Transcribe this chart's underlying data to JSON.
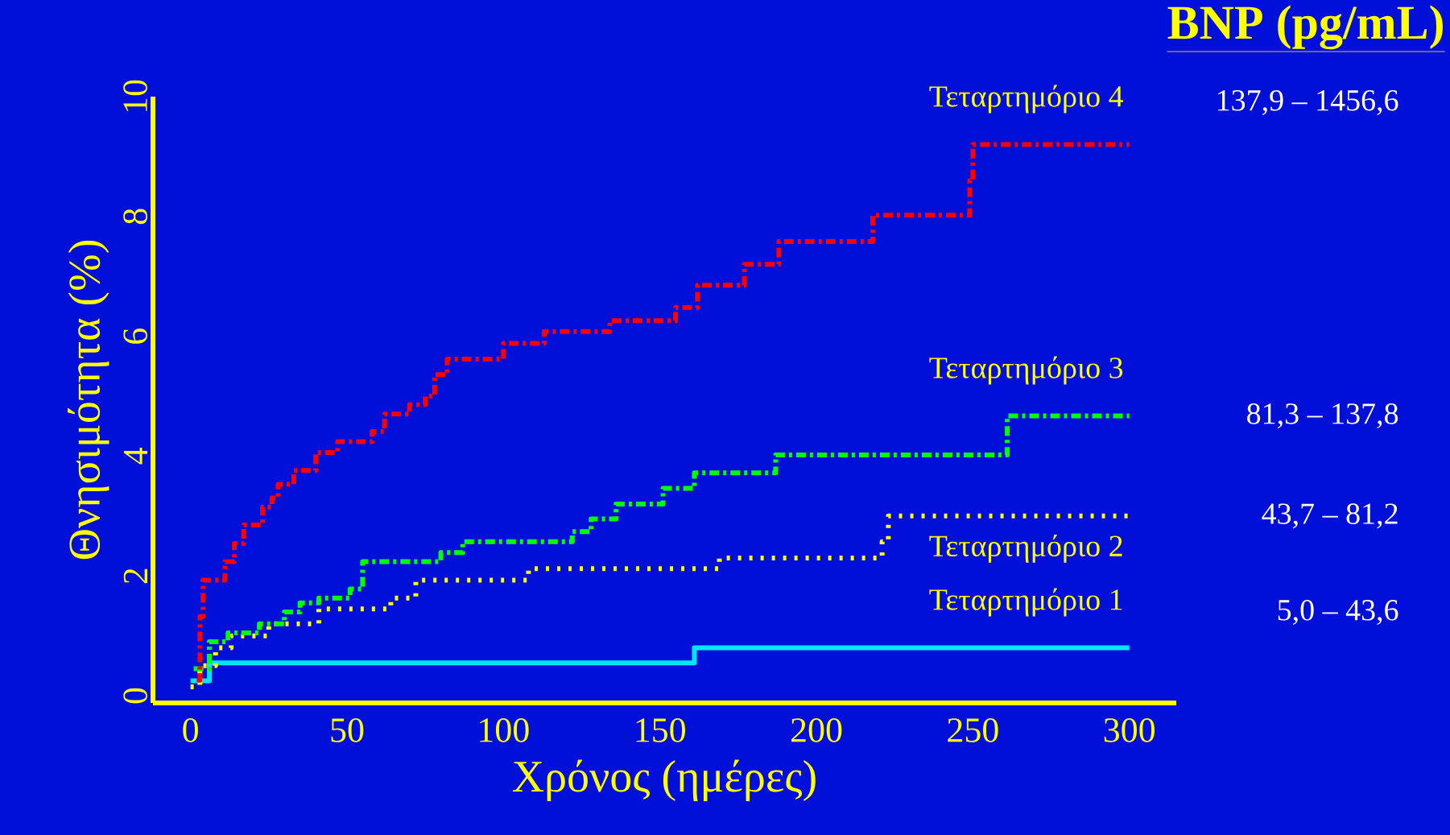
{
  "chart_data": {
    "type": "step",
    "title": "**BNP (pg/mL)**",
    "xlabel": "Χρόνος (ημέρες)",
    "ylabel": "Θνησιμότητα (%)",
    "xlim": [
      -12,
      315
    ],
    "ylim": [
      -0.12,
      10
    ],
    "xticks": [
      0,
      50,
      100,
      150,
      200,
      250,
      300
    ],
    "yticks": [
      0,
      2,
      4,
      6,
      8,
      10
    ],
    "grid": false,
    "series": [
      {
        "name": "Τεταρτημόριο 4",
        "color": "#ff0000",
        "line_style": "dashed",
        "x": [
          2,
          3,
          4,
          11,
          14,
          17,
          23,
          26,
          28,
          33,
          40,
          47,
          58,
          62,
          70,
          75,
          78,
          82,
          100,
          113,
          134,
          155,
          162,
          177,
          188,
          218,
          249,
          250,
          300
        ],
        "values": [
          0.26,
          1.32,
          1.93,
          2.24,
          2.54,
          2.85,
          3.15,
          3.3,
          3.53,
          3.76,
          4.06,
          4.24,
          4.41,
          4.7,
          4.86,
          5.0,
          5.36,
          5.62,
          5.88,
          6.08,
          6.26,
          6.48,
          6.85,
          7.2,
          7.58,
          8.02,
          8.6,
          9.2,
          9.2
        ]
      },
      {
        "name": "Τεταρτημόριο 3",
        "color": "#00ff00",
        "line_style": "dashed",
        "x": [
          1,
          6,
          12,
          22,
          30,
          35,
          41,
          51,
          55,
          80,
          87,
          122,
          128,
          136,
          151,
          161,
          187,
          261,
          300
        ],
        "values": [
          0.45,
          0.9,
          1.05,
          1.2,
          1.4,
          1.55,
          1.63,
          1.78,
          2.24,
          2.39,
          2.57,
          2.74,
          2.95,
          3.2,
          3.46,
          3.72,
          4.02,
          4.67,
          4.67
        ]
      },
      {
        "name": "Τεταρτημόριο 2",
        "color": "#ffff00",
        "line_style": "dotted",
        "x": [
          0,
          3,
          8,
          13,
          25,
          41,
          64,
          72,
          108,
          169,
          221,
          223,
          300
        ],
        "values": [
          0.15,
          0.5,
          0.8,
          1.0,
          1.2,
          1.45,
          1.63,
          1.93,
          2.12,
          2.3,
          2.57,
          3.0,
          3.0
        ]
      },
      {
        "name": "Τεταρτημόριο 1",
        "color": "#00e5ff",
        "line_style": "solid",
        "x": [
          0,
          6,
          161,
          300
        ],
        "values": [
          0.25,
          0.55,
          0.8,
          0.8
        ]
      }
    ],
    "annotations": [
      "137,9 – 1456,6",
      "81,3 – 137,8",
      "43,7 – 81,2",
      "5,0 – 43,6"
    ]
  }
}
